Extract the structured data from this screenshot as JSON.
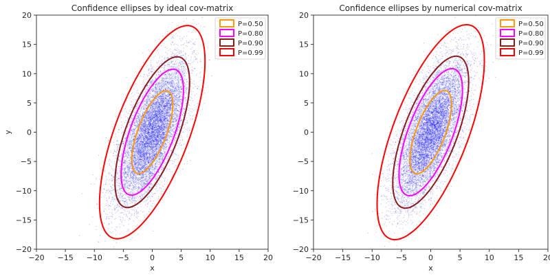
{
  "chart_data": [
    {
      "type": "scatter",
      "title": "Confidence ellipses by ideal cov-matrix",
      "xlabel": "x",
      "ylabel": "y",
      "xlim": [
        -20,
        20
      ],
      "ylim": [
        -20,
        20
      ],
      "xticks": [
        "−20",
        "−15",
        "−10",
        "−5",
        "0",
        "5",
        "10",
        "15",
        "20"
      ],
      "yticks": [
        "−20",
        "−15",
        "−10",
        "−5",
        "0",
        "5",
        "10",
        "15",
        "20"
      ],
      "grid": false,
      "legend_position": "top-right",
      "scatter": {
        "color": "#0000ff",
        "count": 10000,
        "mean": [
          0,
          0
        ],
        "covariance": [
          [
            9,
            12
          ],
          [
            12,
            36
          ]
        ]
      },
      "ellipses": [
        {
          "label": "P=0.50",
          "probability": 0.5,
          "color": "#ff9900"
        },
        {
          "label": "P=0.80",
          "probability": 0.8,
          "color": "#ff00ff"
        },
        {
          "label": "P=0.90",
          "probability": 0.9,
          "color": "#8b1a1a"
        },
        {
          "label": "P=0.99",
          "probability": 0.99,
          "color": "#ff0000"
        }
      ]
    },
    {
      "type": "scatter",
      "title": "Confidence ellipses by numerical cov-matrix",
      "xlabel": "x",
      "ylabel": "",
      "xlim": [
        -20,
        20
      ],
      "ylim": [
        -20,
        20
      ],
      "xticks": [
        "−20",
        "−15",
        "−10",
        "−5",
        "0",
        "5",
        "10",
        "15",
        "20"
      ],
      "yticks": [
        "−20",
        "−15",
        "−10",
        "−5",
        "0",
        "5",
        "10",
        "15",
        "20"
      ],
      "grid": false,
      "legend_position": "top-right",
      "scatter": {
        "color": "#0000ff",
        "count": 10000,
        "mean": [
          0,
          0
        ],
        "covariance": [
          [
            9.1,
            12.2
          ],
          [
            12.2,
            36.6
          ]
        ]
      },
      "ellipses": [
        {
          "label": "P=0.50",
          "probability": 0.5,
          "color": "#ff9900"
        },
        {
          "label": "P=0.80",
          "probability": 0.8,
          "color": "#ff00ff"
        },
        {
          "label": "P=0.90",
          "probability": 0.9,
          "color": "#8b1a1a"
        },
        {
          "label": "P=0.99",
          "probability": 0.99,
          "color": "#ff0000"
        }
      ]
    }
  ]
}
